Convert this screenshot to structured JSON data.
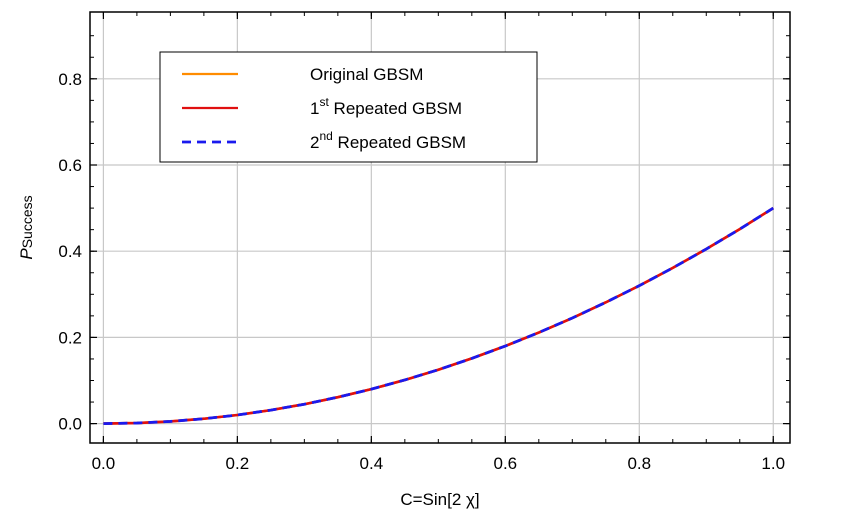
{
  "chart_data": {
    "type": "line",
    "title": "",
    "xlabel": "C=Sin[2 χ]",
    "ylabel_main": "P",
    "ylabel_sub": "Success",
    "xlim": [
      -0.02,
      1.025
    ],
    "ylim": [
      -0.045,
      0.955
    ],
    "xticks": [
      0.0,
      0.2,
      0.4,
      0.6,
      0.8,
      1.0
    ],
    "xtick_labels": [
      "0.0",
      "0.2",
      "0.4",
      "0.6",
      "0.8",
      "1.0"
    ],
    "yticks": [
      0.0,
      0.2,
      0.4,
      0.6,
      0.8
    ],
    "ytick_labels": [
      "0.0",
      "0.2",
      "0.4",
      "0.6",
      "0.8"
    ],
    "grid": true,
    "legend_position": "top-left",
    "series": [
      {
        "name": "Original GBSM",
        "legend_prefix": "",
        "legend_sup": "",
        "legend_rest": "Original GBSM",
        "color": "#ff8c00",
        "dash": "solid",
        "x": [
          0.0,
          0.05,
          0.1,
          0.15,
          0.2,
          0.25,
          0.3,
          0.35,
          0.4,
          0.45,
          0.5,
          0.55,
          0.6,
          0.65,
          0.7,
          0.75,
          0.8,
          0.85,
          0.9,
          0.95,
          1.0
        ],
        "y": [
          0.0,
          0.0013,
          0.005,
          0.0113,
          0.02,
          0.0313,
          0.045,
          0.0613,
          0.08,
          0.1013,
          0.125,
          0.1513,
          0.18,
          0.2113,
          0.245,
          0.2813,
          0.32,
          0.3613,
          0.405,
          0.4513,
          0.5
        ]
      },
      {
        "name": "1st Repeated GBSM",
        "legend_prefix": "1",
        "legend_sup": "st",
        "legend_rest": " Repeated GBSM",
        "color": "#e01010",
        "dash": "solid",
        "x": [
          0.0,
          0.05,
          0.1,
          0.15,
          0.2,
          0.25,
          0.3,
          0.35,
          0.4,
          0.45,
          0.5,
          0.55,
          0.6,
          0.65,
          0.7,
          0.75,
          0.8,
          0.85,
          0.9,
          0.95,
          1.0
        ],
        "y": [
          0.0,
          0.0013,
          0.005,
          0.0113,
          0.02,
          0.0313,
          0.045,
          0.0613,
          0.08,
          0.1013,
          0.125,
          0.1513,
          0.18,
          0.2113,
          0.245,
          0.2813,
          0.32,
          0.3613,
          0.405,
          0.4513,
          0.5
        ]
      },
      {
        "name": "2nd Repeated GBSM",
        "legend_prefix": "2",
        "legend_sup": "nd",
        "legend_rest": " Repeated GBSM",
        "color": "#1a1aee",
        "dash": "dashed",
        "x": [
          0.0,
          0.05,
          0.1,
          0.15,
          0.2,
          0.25,
          0.3,
          0.35,
          0.4,
          0.45,
          0.5,
          0.55,
          0.6,
          0.65,
          0.7,
          0.75,
          0.8,
          0.85,
          0.9,
          0.95,
          1.0
        ],
        "y": [
          0.0,
          0.0013,
          0.005,
          0.0113,
          0.02,
          0.0313,
          0.045,
          0.0613,
          0.08,
          0.1013,
          0.125,
          0.1513,
          0.18,
          0.2113,
          0.245,
          0.2813,
          0.32,
          0.3613,
          0.405,
          0.4513,
          0.5
        ]
      }
    ]
  }
}
